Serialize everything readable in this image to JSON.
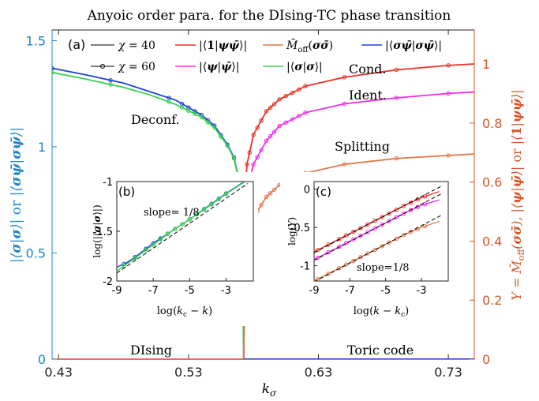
{
  "chart_data": [
    {
      "panel": "(a)",
      "type": "line",
      "title": "Anyoic order para. for the DIsing-TC phase transition",
      "xlabel": "k_σ",
      "ylabel_left": "|⟨σ|σ⟩| or |⟨σψ̄|σψ̄⟩|",
      "ylabel_right": "Y = M̃_off(σσ̄), |⟨ψ|ψ̄⟩| or |⟨1|ψψ̄⟩|",
      "xlim": [
        0.425,
        0.75
      ],
      "ylim_left": [
        0,
        1.55
      ],
      "ylim_right": [
        0,
        1.115
      ],
      "xticks": [
        "0.43",
        "0.53",
        "0.63",
        "0.73"
      ],
      "xtick_values": [
        0.43,
        0.53,
        0.63,
        0.73
      ],
      "yticks_left": [
        "0",
        "0.5",
        "1",
        "1.5"
      ],
      "yticks_left_values": [
        0,
        0.5,
        1,
        1.5
      ],
      "yticks_right": [
        "0",
        "0.2",
        "0.4",
        "0.6",
        "0.8",
        "1"
      ],
      "yticks_right_values": [
        0,
        0.2,
        0.4,
        0.6,
        0.8,
        1
      ],
      "critical_point": 0.5725,
      "legend": [
        {
          "label": "χ = 40",
          "color": "#000000",
          "marker": "none"
        },
        {
          "label": "χ = 60",
          "color": "#000000",
          "marker": "circle"
        },
        {
          "label": "|⟨1|ψψ̄⟩|",
          "color": "#e8332a"
        },
        {
          "label": "|⟨ψ|ψ̄⟩|",
          "color": "#ee2ee6"
        },
        {
          "label": "M̃_off(σσ̄)",
          "color": "#e27a4e"
        },
        {
          "label": "|⟨σ|σ⟩|",
          "color": "#37d24a"
        },
        {
          "label": "|⟨σψ̄|σψ̄⟩|",
          "color": "#2243d6"
        }
      ],
      "series": [
        {
          "name": "|⟨σψ̄|σψ̄⟩|",
          "axis": "left",
          "color": "#2243d6",
          "x": [
            0.425,
            0.45,
            0.48,
            0.5,
            0.52,
            0.54,
            0.55,
            0.56,
            0.565,
            0.569,
            0.5715,
            0.5725,
            0.6,
            0.75
          ],
          "y": [
            1.37,
            1.34,
            1.3,
            1.26,
            1.22,
            1.15,
            1.1,
            1.01,
            0.95,
            0.84,
            0.58,
            0.0,
            0.0,
            0.0
          ]
        },
        {
          "name": "|⟨σ|σ⟩|",
          "axis": "left",
          "color": "#37d24a",
          "x": [
            0.425,
            0.45,
            0.48,
            0.5,
            0.52,
            0.54,
            0.55,
            0.56,
            0.565,
            0.569,
            0.5715,
            0.5725
          ],
          "y": [
            1.35,
            1.32,
            1.28,
            1.245,
            1.2,
            1.14,
            1.09,
            1.005,
            0.945,
            0.835,
            0.58,
            0.0
          ]
        },
        {
          "name": "|⟨1|ψψ̄⟩|",
          "axis": "right",
          "color": "#e8332a",
          "x": [
            0.425,
            0.5725,
            0.5735,
            0.575,
            0.58,
            0.59,
            0.6,
            0.62,
            0.65,
            0.69,
            0.73,
            0.75
          ],
          "y": [
            0.0,
            0.0,
            0.55,
            0.66,
            0.76,
            0.84,
            0.88,
            0.925,
            0.955,
            0.98,
            0.995,
            1.0
          ]
        },
        {
          "name": "|⟨ψ|ψ̄⟩|",
          "axis": "right",
          "color": "#ee2ee6",
          "x": [
            0.5725,
            0.5735,
            0.575,
            0.58,
            0.59,
            0.6,
            0.62,
            0.65,
            0.69,
            0.73,
            0.75
          ],
          "y": [
            0.0,
            0.47,
            0.57,
            0.66,
            0.74,
            0.79,
            0.835,
            0.865,
            0.885,
            0.9,
            0.905
          ]
        },
        {
          "name": "M̃_off(σσ̄)",
          "axis": "right",
          "color": "#e27a4e",
          "x": [
            0.5725,
            0.5735,
            0.575,
            0.58,
            0.59,
            0.6,
            0.62,
            0.65,
            0.69,
            0.73,
            0.75
          ],
          "y": [
            0.0,
            0.32,
            0.4,
            0.48,
            0.55,
            0.59,
            0.63,
            0.66,
            0.68,
            0.69,
            0.695
          ]
        }
      ],
      "annotations": [
        "Deconf.",
        "Cond.",
        "Ident.",
        "Splitting",
        "DIsing",
        "Toric code"
      ]
    },
    {
      "panel": "(b)",
      "type": "line",
      "xlabel": "log(k_c − k)",
      "ylabel": "log(|⟨σ|σ⟩|)",
      "xlim": [
        -9,
        -1.5
      ],
      "ylim": [
        -2,
        -1
      ],
      "xticks": [
        "-9",
        "-7",
        "-5",
        "-3"
      ],
      "xtick_values": [
        -9,
        -7,
        -5,
        -3
      ],
      "yticks": [
        "-2",
        "-1.5",
        "-1"
      ],
      "ytick_values": [
        -2,
        -1.5,
        -1
      ],
      "annotation": "slope= 1/8",
      "series": [
        {
          "name": "|⟨σψ̄|σψ̄⟩|",
          "color": "#2243d6",
          "x": [
            -9,
            -8.5,
            -8,
            -7,
            -6,
            -5,
            -4,
            -3,
            -2
          ],
          "y": [
            -1.86,
            -1.82,
            -1.76,
            -1.62,
            -1.5,
            -1.38,
            -1.25,
            -1.12,
            -1.0
          ]
        },
        {
          "name": "|⟨σ|σ⟩|",
          "color": "#37d24a",
          "x": [
            -9,
            -8,
            -7,
            -6,
            -5,
            -4,
            -3,
            -2
          ],
          "y": [
            -1.9,
            -1.77,
            -1.635,
            -1.5,
            -1.38,
            -1.255,
            -1.125,
            -1.005
          ]
        },
        {
          "name": "fit",
          "color": "#000000",
          "dash": true,
          "x": [
            -9,
            -1.8
          ],
          "y": [
            -1.92,
            -1.02
          ]
        }
      ]
    },
    {
      "panel": "(c)",
      "type": "line",
      "xlabel": "log(k − k_c)",
      "ylabel": "log(Y)",
      "xlim": [
        -9,
        -1.5
      ],
      "ylim": [
        -1.2,
        0.1
      ],
      "xticks": [
        "-9",
        "-7",
        "-5",
        "-3"
      ],
      "xtick_values": [
        -9,
        -7,
        -5,
        -3
      ],
      "yticks": [
        "-1",
        "-0.5",
        "0"
      ],
      "ytick_values": [
        -1,
        -0.5,
        0
      ],
      "annotation": "slope=1/8",
      "series": [
        {
          "name": "|⟨1|ψψ̄⟩|",
          "color": "#e8332a",
          "x": [
            -9,
            -8,
            -7,
            -6,
            -5,
            -4,
            -3,
            -2
          ],
          "y": [
            -0.82,
            -0.7,
            -0.58,
            -0.46,
            -0.34,
            -0.22,
            -0.11,
            -0.03
          ]
        },
        {
          "name": "|⟨ψ|ψ̄⟩|",
          "color": "#ee2ee6",
          "x": [
            -9,
            -8,
            -7,
            -6,
            -5,
            -4,
            -3,
            -2
          ],
          "y": [
            -0.92,
            -0.8,
            -0.68,
            -0.56,
            -0.44,
            -0.32,
            -0.21,
            -0.14
          ]
        },
        {
          "name": "M̃_off(σσ̄)",
          "color": "#e27a4e",
          "x": [
            -9,
            -8,
            -7,
            -6,
            -5,
            -4,
            -3,
            -2
          ],
          "y": [
            -1.2,
            -1.08,
            -0.96,
            -0.84,
            -0.72,
            -0.6,
            -0.5,
            -0.42
          ]
        },
        {
          "name": "fit1",
          "color": "#000000",
          "dash": true,
          "x": [
            -9,
            -1.8
          ],
          "y": [
            -0.83,
            0.05
          ]
        },
        {
          "name": "fit2",
          "color": "#000000",
          "dash": true,
          "x": [
            -9,
            -1.8
          ],
          "y": [
            -0.93,
            -0.05
          ]
        },
        {
          "name": "fit3",
          "color": "#000000",
          "dash": true,
          "x": [
            -9,
            -1.8
          ],
          "y": [
            -1.21,
            -0.33
          ]
        }
      ]
    }
  ]
}
